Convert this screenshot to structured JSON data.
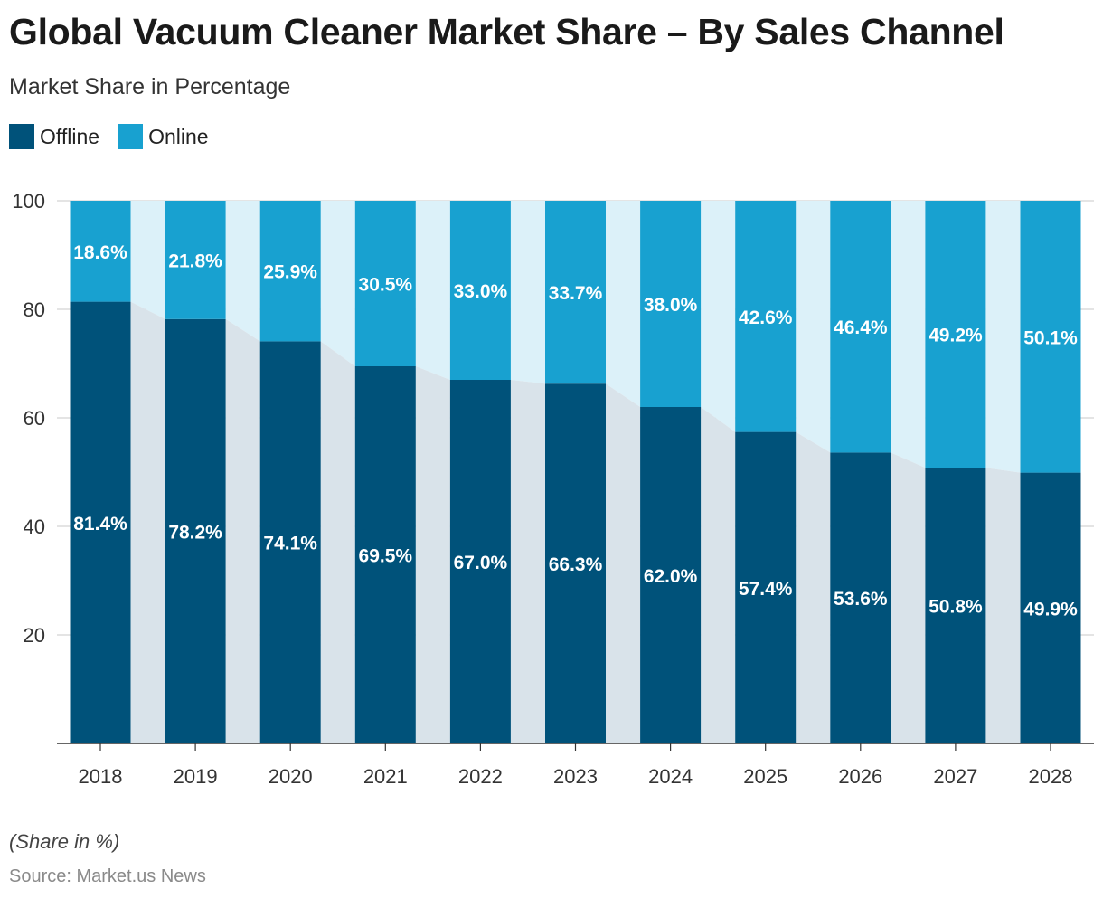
{
  "header": {
    "title": "Global Vacuum Cleaner Market Share – By Sales Channel",
    "subtitle": "Market Share in Percentage"
  },
  "legend": {
    "items": [
      {
        "label": "Offline",
        "color": "#00527a"
      },
      {
        "label": "Online",
        "color": "#18a1d0"
      }
    ]
  },
  "footer": {
    "note": "(Share in %)",
    "source": "Source: Market.us News"
  },
  "chart_data": {
    "type": "bar",
    "stacked": true,
    "categories": [
      "2018",
      "2019",
      "2020",
      "2021",
      "2022",
      "2023",
      "2024",
      "2025",
      "2026",
      "2027",
      "2028"
    ],
    "series": [
      {
        "name": "Offline",
        "color": "#00527a",
        "values": [
          81.4,
          78.2,
          74.1,
          69.5,
          67.0,
          66.3,
          62.0,
          57.4,
          53.6,
          50.8,
          49.9
        ],
        "labels": [
          "81.4%",
          "78.2%",
          "74.1%",
          "69.5%",
          "67.0%",
          "66.3%",
          "62.0%",
          "57.4%",
          "53.6%",
          "50.8%",
          "49.9%"
        ]
      },
      {
        "name": "Online",
        "color": "#18a1d0",
        "values": [
          18.6,
          21.8,
          25.9,
          30.5,
          33.0,
          33.7,
          38.0,
          42.6,
          46.4,
          49.2,
          50.1
        ],
        "labels": [
          "18.6%",
          "21.8%",
          "25.9%",
          "30.5%",
          "33.0%",
          "33.7%",
          "38.0%",
          "42.6%",
          "46.4%",
          "49.2%",
          "50.1%"
        ]
      }
    ],
    "yticks": [
      "20",
      "40",
      "60",
      "80",
      "100"
    ],
    "ylim": [
      0,
      100
    ],
    "grid": true,
    "legend_position": "top-left"
  }
}
